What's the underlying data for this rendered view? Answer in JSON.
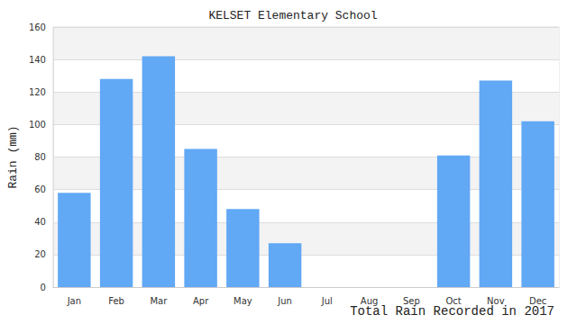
{
  "chart_data": {
    "type": "bar",
    "title": "KELSET Elementary School",
    "subtitle": "Total Rain Recorded in 2017",
    "y_label": "Rain (mm)",
    "categories": [
      "Jan",
      "Feb",
      "Mar",
      "Apr",
      "May",
      "Jun",
      "Jul",
      "Aug",
      "Sep",
      "Oct",
      "Nov",
      "Dec"
    ],
    "values": [
      58,
      128,
      142,
      85,
      48,
      27,
      0,
      0,
      0,
      81,
      127,
      102
    ],
    "color": "#61a8f5",
    "ylim": [
      0,
      160
    ],
    "yticks": [
      0,
      20,
      40,
      60,
      80,
      100,
      120,
      140,
      160
    ],
    "grid": true
  }
}
